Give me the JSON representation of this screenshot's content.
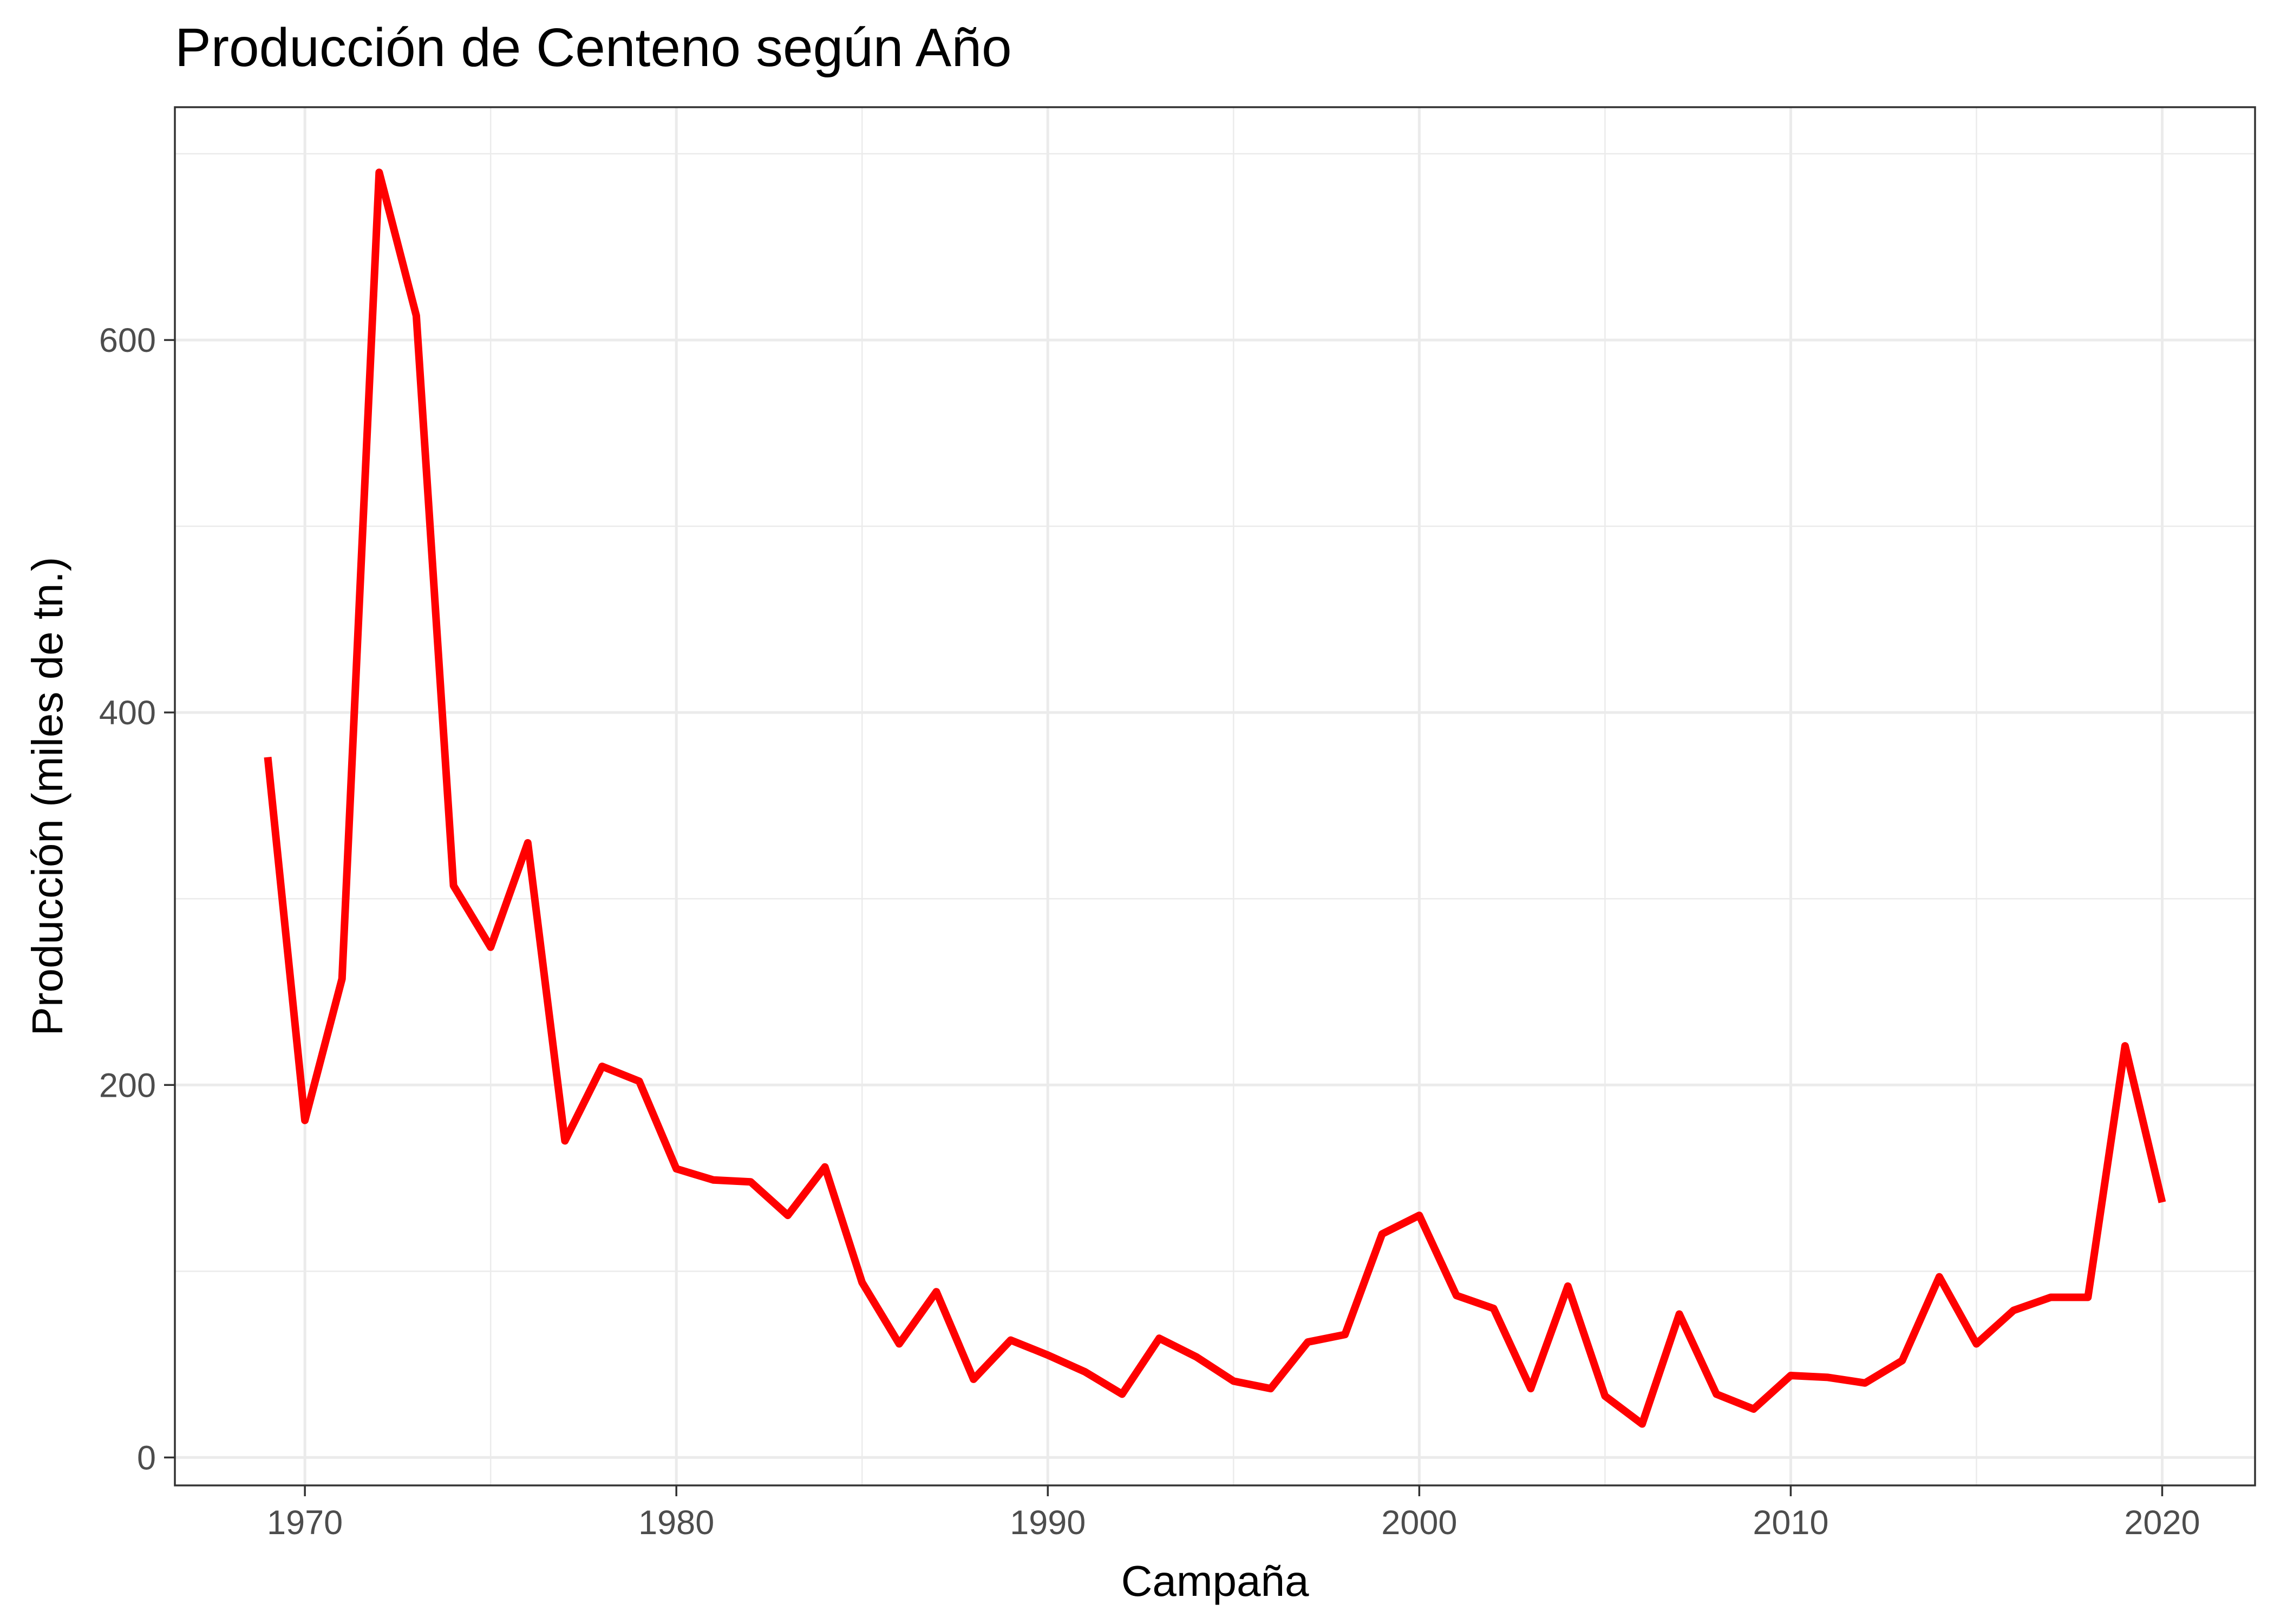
{
  "chart_data": {
    "type": "line",
    "title": "Producción de Centeno según Año",
    "xlabel": "Campaña",
    "ylabel": "Producción (miles de tn.)",
    "xlim": [
      1966.5,
      2022.5
    ],
    "ylim": [
      -15,
      725
    ],
    "x_ticks": [
      1970,
      1980,
      1990,
      2000,
      2010,
      2020
    ],
    "y_ticks": [
      0,
      200,
      400,
      600
    ],
    "x_tick_labels": [
      "1970",
      "1980",
      "1990",
      "2000",
      "2010",
      "2020"
    ],
    "y_tick_labels": [
      "0",
      "200",
      "400",
      "600"
    ],
    "grid": true,
    "legend": "none",
    "series": [
      {
        "color": "#ff0000",
        "x": [
          1969,
          1970,
          1971,
          1972,
          1973,
          1974,
          1975,
          1976,
          1977,
          1978,
          1979,
          1980,
          1981,
          1982,
          1983,
          1984,
          1985,
          1986,
          1987,
          1988,
          1989,
          1990,
          1991,
          1992,
          1993,
          1994,
          1995,
          1996,
          1997,
          1998,
          1999,
          2000,
          2001,
          2002,
          2003,
          2004,
          2005,
          2006,
          2007,
          2008,
          2009,
          2010,
          2011,
          2012,
          2013,
          2014,
          2015,
          2016,
          2017,
          2018,
          2019,
          2020
        ],
        "y": [
          376,
          181,
          257,
          690,
          613,
          307,
          274,
          330,
          170,
          210,
          202,
          155,
          149,
          148,
          130,
          156,
          94,
          61,
          89,
          42,
          63,
          55,
          46,
          34,
          64,
          54,
          41,
          37,
          62,
          66,
          120,
          130,
          87,
          80,
          37,
          92,
          33,
          18,
          77,
          34,
          26,
          44,
          43,
          40,
          52,
          97,
          61,
          79,
          86,
          86,
          221,
          137
        ]
      }
    ]
  }
}
